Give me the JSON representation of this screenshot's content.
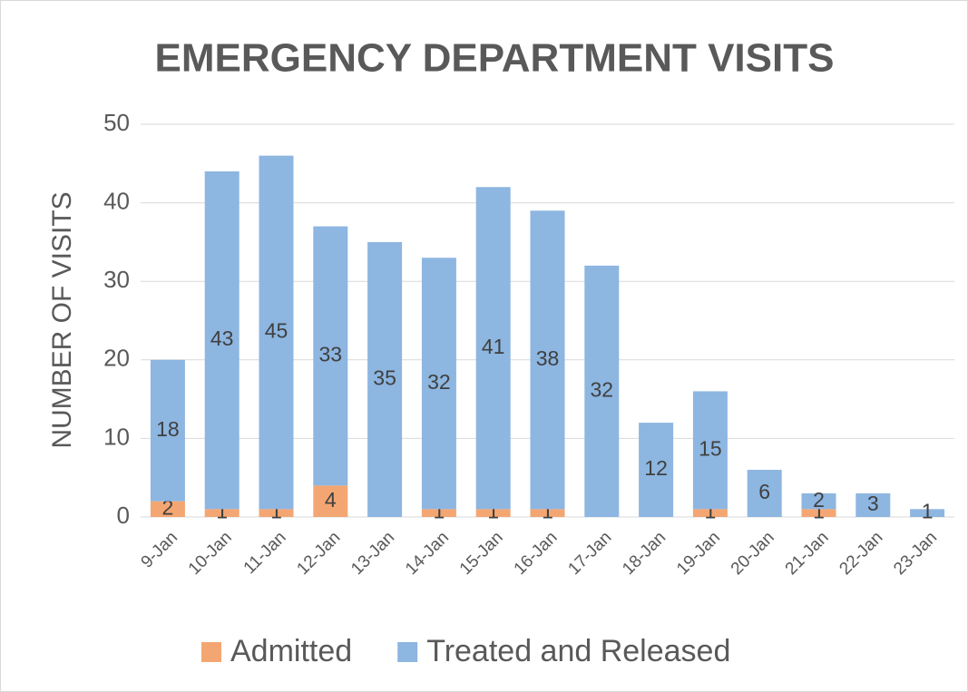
{
  "chart_data": {
    "type": "bar",
    "stacked": true,
    "title": "EMERGENCY DEPARTMENT VISITS",
    "y_label": "NUMBER OF VISITS",
    "categories": [
      "9-Jan",
      "10-Jan",
      "11-Jan",
      "12-Jan",
      "13-Jan",
      "14-Jan",
      "15-Jan",
      "16-Jan",
      "17-Jan",
      "18-Jan",
      "19-Jan",
      "20-Jan",
      "21-Jan",
      "22-Jan",
      "23-Jan"
    ],
    "series": [
      {
        "name": "Admitted",
        "color": "#f4a672",
        "values": [
          2,
          1,
          1,
          4,
          null,
          1,
          1,
          1,
          null,
          null,
          1,
          null,
          1,
          null,
          null
        ]
      },
      {
        "name": "Treated and Released",
        "color": "#8db6e1",
        "values": [
          18,
          43,
          45,
          33,
          35,
          32,
          41,
          38,
          32,
          12,
          15,
          6,
          2,
          3,
          1
        ]
      }
    ],
    "ylim": [
      0,
      50
    ],
    "yticks": [
      0,
      10,
      20,
      30,
      40,
      50
    ],
    "grid": true,
    "legend": "bottom"
  }
}
